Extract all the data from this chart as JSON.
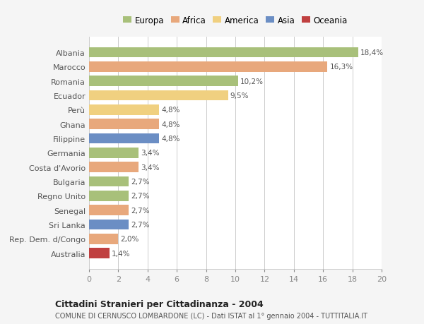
{
  "categories": [
    "Albania",
    "Marocco",
    "Romania",
    "Ecuador",
    "Perù",
    "Ghana",
    "Filippine",
    "Germania",
    "Costa d'Avorio",
    "Bulgaria",
    "Regno Unito",
    "Senegal",
    "Sri Lanka",
    "Rep. Dem. d/Congo",
    "Australia"
  ],
  "values": [
    18.4,
    16.3,
    10.2,
    9.5,
    4.8,
    4.8,
    4.8,
    3.4,
    3.4,
    2.7,
    2.7,
    2.7,
    2.7,
    2.0,
    1.4
  ],
  "labels": [
    "18,4%",
    "16,3%",
    "10,2%",
    "9,5%",
    "4,8%",
    "4,8%",
    "4,8%",
    "3,4%",
    "3,4%",
    "2,7%",
    "2,7%",
    "2,7%",
    "2,7%",
    "2,0%",
    "1,4%"
  ],
  "colors": [
    "#a8c07a",
    "#e8a87c",
    "#a8c07a",
    "#f0d080",
    "#f0d080",
    "#e8a87c",
    "#6b8ec4",
    "#a8c07a",
    "#e8a87c",
    "#a8c07a",
    "#a8c07a",
    "#e8a87c",
    "#6b8ec4",
    "#e8a87c",
    "#c04040"
  ],
  "legend_labels": [
    "Europa",
    "Africa",
    "America",
    "Asia",
    "Oceania"
  ],
  "legend_colors": [
    "#a8c07a",
    "#e8a87c",
    "#f0d080",
    "#6b8ec4",
    "#c04040"
  ],
  "title": "Cittadini Stranieri per Cittadinanza - 2004",
  "subtitle": "COMUNE DI CERNUSCO LOMBARDONE (LC) - Dati ISTAT al 1° gennaio 2004 - TUTTITALIA.IT",
  "xlim": [
    0,
    20
  ],
  "xticks": [
    0,
    2,
    4,
    6,
    8,
    10,
    12,
    14,
    16,
    18,
    20
  ],
  "bg_color": "#f5f5f5",
  "bar_bg_color": "#ffffff"
}
